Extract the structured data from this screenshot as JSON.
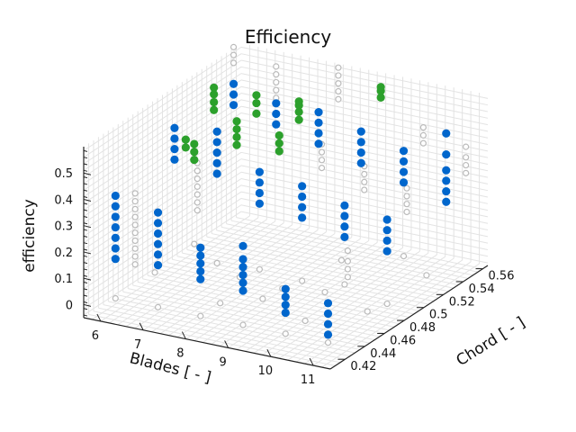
{
  "chart_data": {
    "type": "scatter3d",
    "title": "Efficiency",
    "xlabel": "Blades [ - ]",
    "ylabel": "Chord [ - ]",
    "zlabel": "efficiency",
    "x_ticks": [
      "6",
      "7",
      "8",
      "9",
      "10",
      "11"
    ],
    "y_ticks": [
      "0.42",
      "0.44",
      "0.46",
      "0.48",
      "0.5",
      "0.52",
      "0.54",
      "0.56"
    ],
    "z_ticks": [
      "0",
      "0.1",
      "0.2",
      "0.3",
      "0.4",
      "0.5"
    ],
    "xlim": [
      5.6,
      11.4
    ],
    "ylim": [
      0.405,
      0.565
    ],
    "zlim": [
      -0.05,
      0.6
    ],
    "grid": true,
    "colors": {
      "blue": "#0066cc",
      "green": "#2ca02c",
      "grey": "#bbbbbb"
    },
    "series": [
      {
        "style": "blue",
        "points": [
          [
            6,
            0.42,
            0.15
          ],
          [
            6,
            0.42,
            0.19
          ],
          [
            6,
            0.42,
            0.23
          ],
          [
            6,
            0.42,
            0.27
          ],
          [
            6,
            0.42,
            0.31
          ],
          [
            6,
            0.42,
            0.35
          ],
          [
            6,
            0.42,
            0.39
          ],
          [
            7,
            0.42,
            0.16
          ],
          [
            7,
            0.42,
            0.2
          ],
          [
            7,
            0.42,
            0.24
          ],
          [
            7,
            0.42,
            0.28
          ],
          [
            7,
            0.42,
            0.32
          ],
          [
            7,
            0.42,
            0.36
          ],
          [
            8,
            0.42,
            0.14
          ],
          [
            8,
            0.42,
            0.17
          ],
          [
            8,
            0.42,
            0.2
          ],
          [
            8,
            0.42,
            0.23
          ],
          [
            8,
            0.42,
            0.26
          ],
          [
            9,
            0.42,
            0.13
          ],
          [
            9,
            0.42,
            0.16
          ],
          [
            9,
            0.42,
            0.19
          ],
          [
            9,
            0.42,
            0.22
          ],
          [
            9,
            0.42,
            0.25
          ],
          [
            9,
            0.42,
            0.3
          ],
          [
            10,
            0.42,
            0.08
          ],
          [
            10,
            0.42,
            0.11
          ],
          [
            10,
            0.42,
            0.14
          ],
          [
            10,
            0.42,
            0.17
          ],
          [
            11,
            0.42,
            0.03
          ],
          [
            11,
            0.42,
            0.07
          ],
          [
            11,
            0.42,
            0.11
          ],
          [
            11,
            0.42,
            0.15
          ],
          [
            6,
            0.48,
            0.38
          ],
          [
            6,
            0.48,
            0.42
          ],
          [
            6,
            0.48,
            0.46
          ],
          [
            6,
            0.48,
            0.5
          ],
          [
            7,
            0.48,
            0.36
          ],
          [
            7,
            0.48,
            0.4
          ],
          [
            7,
            0.48,
            0.44
          ],
          [
            7,
            0.48,
            0.48
          ],
          [
            7,
            0.48,
            0.52
          ],
          [
            8,
            0.48,
            0.28
          ],
          [
            8,
            0.48,
            0.32
          ],
          [
            8,
            0.48,
            0.36
          ],
          [
            8,
            0.48,
            0.4
          ],
          [
            9,
            0.48,
            0.26
          ],
          [
            9,
            0.48,
            0.3
          ],
          [
            9,
            0.48,
            0.34
          ],
          [
            9,
            0.48,
            0.38
          ],
          [
            10,
            0.48,
            0.22
          ],
          [
            10,
            0.48,
            0.26
          ],
          [
            10,
            0.48,
            0.3
          ],
          [
            10,
            0.48,
            0.34
          ],
          [
            11,
            0.48,
            0.2
          ],
          [
            11,
            0.48,
            0.24
          ],
          [
            11,
            0.48,
            0.28
          ],
          [
            11,
            0.48,
            0.32
          ],
          [
            6,
            0.54,
            0.44
          ],
          [
            6,
            0.54,
            0.48
          ],
          [
            6,
            0.54,
            0.52
          ],
          [
            7,
            0.54,
            0.4
          ],
          [
            7,
            0.54,
            0.44
          ],
          [
            7,
            0.54,
            0.48
          ],
          [
            8,
            0.54,
            0.36
          ],
          [
            8,
            0.54,
            0.4
          ],
          [
            8,
            0.54,
            0.44
          ],
          [
            8,
            0.54,
            0.48
          ],
          [
            9,
            0.54,
            0.32
          ],
          [
            9,
            0.54,
            0.36
          ],
          [
            9,
            0.54,
            0.4
          ],
          [
            9,
            0.54,
            0.44
          ],
          [
            10,
            0.54,
            0.28
          ],
          [
            10,
            0.54,
            0.32
          ],
          [
            10,
            0.54,
            0.36
          ],
          [
            10,
            0.54,
            0.4
          ],
          [
            11,
            0.54,
            0.24
          ],
          [
            11,
            0.54,
            0.28
          ],
          [
            11,
            0.54,
            0.32
          ],
          [
            11,
            0.54,
            0.36
          ],
          [
            11,
            0.54,
            0.42
          ],
          [
            11,
            0.54,
            0.5
          ]
        ]
      },
      {
        "style": "green",
        "points": [
          [
            6,
            0.52,
            0.47
          ],
          [
            6,
            0.52,
            0.5
          ],
          [
            6,
            0.52,
            0.53
          ],
          [
            6,
            0.52,
            0.555
          ],
          [
            7,
            0.52,
            0.49
          ],
          [
            7,
            0.52,
            0.53
          ],
          [
            7,
            0.52,
            0.56
          ],
          [
            6,
            0.5,
            0.33
          ],
          [
            6,
            0.5,
            0.36
          ],
          [
            6,
            0.5,
            0.39
          ],
          [
            7,
            0.5,
            0.42
          ],
          [
            7,
            0.5,
            0.45
          ],
          [
            7,
            0.5,
            0.48
          ],
          [
            7,
            0.5,
            0.51
          ],
          [
            8,
            0.52,
            0.5
          ],
          [
            8,
            0.52,
            0.53
          ],
          [
            8,
            0.52,
            0.555
          ],
          [
            8,
            0.52,
            0.57
          ],
          [
            8,
            0.5,
            0.43
          ],
          [
            8,
            0.5,
            0.46
          ],
          [
            8,
            0.5,
            0.49
          ],
          [
            9,
            0.56,
            0.52
          ],
          [
            9,
            0.56,
            0.545
          ],
          [
            9,
            0.56,
            0.56
          ],
          [
            5.8,
            0.5,
            0.37
          ],
          [
            5.8,
            0.5,
            0.4
          ]
        ]
      },
      {
        "style": "grey",
        "points": [
          [
            6,
            0.44,
            0.08
          ],
          [
            6,
            0.44,
            0.11
          ],
          [
            6,
            0.44,
            0.14
          ],
          [
            6,
            0.44,
            0.17
          ],
          [
            6,
            0.44,
            0.2
          ],
          [
            6,
            0.44,
            0.23
          ],
          [
            6,
            0.44,
            0.26
          ],
          [
            6,
            0.44,
            0.29
          ],
          [
            6,
            0.44,
            0.32
          ],
          [
            6,
            0.44,
            0.35
          ],
          [
            7,
            0.46,
            0.27
          ],
          [
            7,
            0.46,
            0.3
          ],
          [
            7,
            0.46,
            0.33
          ],
          [
            7,
            0.46,
            0.36
          ],
          [
            7,
            0.46,
            0.39
          ],
          [
            7,
            0.46,
            0.42
          ],
          [
            7,
            0.46,
            0.45
          ],
          [
            6,
            0.52,
            0.56
          ],
          [
            6,
            0.54,
            0.6
          ],
          [
            6,
            0.54,
            0.63
          ],
          [
            6,
            0.54,
            0.66
          ],
          [
            7,
            0.54,
            0.5
          ],
          [
            7,
            0.54,
            0.53
          ],
          [
            7,
            0.54,
            0.56
          ],
          [
            7,
            0.54,
            0.59
          ],
          [
            7,
            0.54,
            0.62
          ],
          [
            8,
            0.56,
            0.48
          ],
          [
            8,
            0.56,
            0.51
          ],
          [
            8,
            0.56,
            0.54
          ],
          [
            8,
            0.56,
            0.57
          ],
          [
            8,
            0.56,
            0.6
          ],
          [
            9,
            0.5,
            0.4
          ],
          [
            9,
            0.5,
            0.43
          ],
          [
            9,
            0.5,
            0.46
          ],
          [
            9,
            0.5,
            0.49
          ],
          [
            10,
            0.5,
            0.35
          ],
          [
            10,
            0.5,
            0.38
          ],
          [
            10,
            0.5,
            0.41
          ],
          [
            10,
            0.5,
            0.44
          ],
          [
            10,
            0.56,
            0.38
          ],
          [
            10,
            0.56,
            0.41
          ],
          [
            10,
            0.56,
            0.44
          ],
          [
            11,
            0.5,
            0.3
          ],
          [
            11,
            0.5,
            0.33
          ],
          [
            11,
            0.5,
            0.36
          ],
          [
            11,
            0.5,
            0.39
          ],
          [
            11,
            0.56,
            0.3
          ],
          [
            11,
            0.56,
            0.33
          ],
          [
            11,
            0.56,
            0.36
          ],
          [
            11,
            0.56,
            0.4
          ],
          [
            11,
            0.44,
            0.2
          ],
          [
            11,
            0.44,
            0.23
          ],
          [
            11,
            0.44,
            0.26
          ],
          [
            11,
            0.44,
            0.3
          ],
          [
            9,
            0.44,
            0.05
          ],
          [
            9,
            0.46,
            0.04
          ],
          [
            8,
            0.46,
            0.05
          ],
          [
            10,
            0.46,
            0.06
          ],
          [
            7,
            0.48,
            0.02
          ],
          [
            8,
            0.48,
            0.03
          ],
          [
            9,
            0.48,
            0.02
          ],
          [
            10,
            0.48,
            0.04
          ],
          [
            6,
            0.5,
            0.01
          ],
          [
            11,
            0.46,
            0.02
          ],
          [
            11,
            0.52,
            0.01
          ],
          [
            6,
            0.42,
            0.0
          ],
          [
            7,
            0.42,
            0.0
          ],
          [
            8,
            0.42,
            0.0
          ],
          [
            9,
            0.42,
            0.0
          ],
          [
            10,
            0.42,
            0.0
          ],
          [
            11,
            0.42,
            0.0
          ],
          [
            6,
            0.46,
            0.0
          ],
          [
            8,
            0.44,
            0.0
          ],
          [
            10,
            0.44,
            0.0
          ],
          [
            9,
            0.52,
            0.0
          ],
          [
            11,
            0.48,
            0.0
          ],
          [
            10,
            0.54,
            0.0
          ]
        ]
      }
    ]
  }
}
